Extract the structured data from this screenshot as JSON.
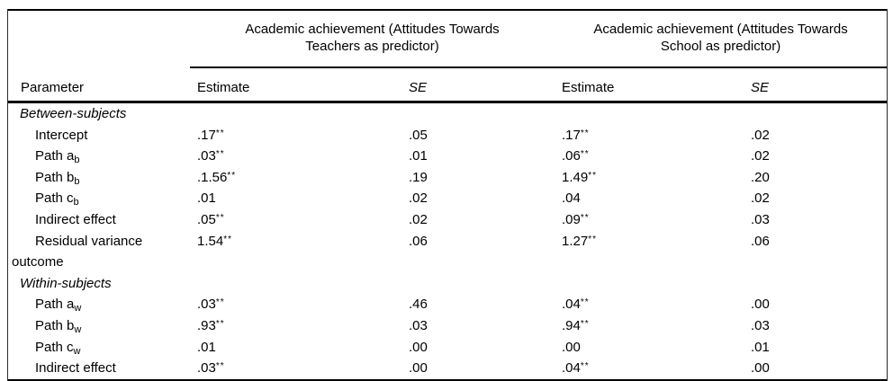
{
  "colors": {
    "background": "#ffffff",
    "rule": "#000000",
    "text": "#000000"
  },
  "table": {
    "header": {
      "parameter_col": "Parameter",
      "groups": [
        {
          "title_line1": "Academic achievement (Attitudes Towards",
          "title_line2": "Teachers as predictor)",
          "estimate_label": "Estimate",
          "se_label": "SE"
        },
        {
          "title_line1": "Academic achievement (Attitudes Towards",
          "title_line2": "School as predictor)",
          "estimate_label": "Estimate",
          "se_label": "SE"
        }
      ]
    },
    "rows": [
      {
        "kind": "section",
        "label": "Between-subjects"
      },
      {
        "kind": "data",
        "label": "Intercept",
        "label_sub": "",
        "t_est": ".17",
        "t_sig": "**",
        "t_se": ".05",
        "s_est": ".17",
        "s_sig": "**",
        "s_se": ".02"
      },
      {
        "kind": "data",
        "label": "Path a",
        "label_sub": "b",
        "t_est": ".03",
        "t_sig": "**",
        "t_se": ".01",
        "s_est": ".06",
        "s_sig": "**",
        "s_se": ".02"
      },
      {
        "kind": "data",
        "label": "Path b",
        "label_sub": "b",
        "t_est": ".1.56",
        "t_sig": "**",
        "t_se": ".19",
        "s_est": "1.49",
        "s_sig": "**",
        "s_se": ".20"
      },
      {
        "kind": "data",
        "label": "Path c",
        "label_sub": "b",
        "t_est": ".01",
        "t_sig": "",
        "t_se": ".02",
        "s_est": ".04",
        "s_sig": "",
        "s_se": ".02"
      },
      {
        "kind": "data",
        "label": "Indirect effect",
        "label_sub": "",
        "t_est": ".05",
        "t_sig": "**",
        "t_se": ".02",
        "s_est": ".09",
        "s_sig": "**",
        "s_se": ".03"
      },
      {
        "kind": "data",
        "label": "Residual variance",
        "label_sub": "",
        "t_est": "1.54",
        "t_sig": "**",
        "t_se": ".06",
        "s_est": "1.27",
        "s_sig": "**",
        "s_se": ".06"
      },
      {
        "kind": "continuation",
        "label": "outcome"
      },
      {
        "kind": "section",
        "label": "Within-subjects"
      },
      {
        "kind": "data",
        "label": "Path a",
        "label_sub": "w",
        "t_est": ".03",
        "t_sig": "**",
        "t_se": ".46",
        "s_est": ".04",
        "s_sig": "**",
        "s_se": ".00"
      },
      {
        "kind": "data",
        "label": "Path b",
        "label_sub": "w",
        "t_est": ".93",
        "t_sig": "**",
        "t_se": ".03",
        "s_est": ".94",
        "s_sig": "**",
        "s_se": ".03"
      },
      {
        "kind": "data",
        "label": "Path c",
        "label_sub": "w",
        "t_est": ".01",
        "t_sig": "",
        "t_se": ".00",
        "s_est": ".00",
        "s_sig": "",
        "s_se": ".01"
      },
      {
        "kind": "data",
        "label": "Indirect effect",
        "label_sub": "",
        "t_est": ".03",
        "t_sig": "**",
        "t_se": ".00",
        "s_est": ".04",
        "s_sig": "**",
        "s_se": ".00"
      }
    ]
  }
}
